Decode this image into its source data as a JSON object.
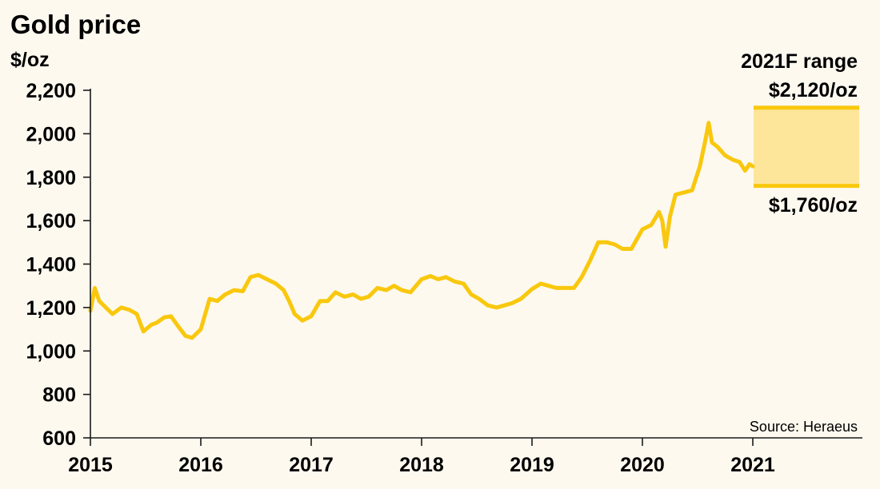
{
  "chart_data": {
    "type": "line",
    "title": "Gold price",
    "ylabel": "$/oz",
    "ylim": [
      600,
      2200
    ],
    "yticks": [
      600,
      800,
      1000,
      1200,
      1400,
      1600,
      1800,
      2000,
      2200
    ],
    "ytick_labels": [
      "600",
      "800",
      "1,000",
      "1,200",
      "1,400",
      "1,600",
      "1,800",
      "2,000",
      "2,200"
    ],
    "xlim": [
      2015,
      2022
    ],
    "xticks": [
      2015,
      2016,
      2017,
      2018,
      2019,
      2020,
      2021
    ],
    "xtick_labels": [
      "2015",
      "2016",
      "2017",
      "2018",
      "2019",
      "2020",
      "2021"
    ],
    "grid": false,
    "line_color": "#f9c80e",
    "series": [
      {
        "name": "",
        "x": [
          2015.0,
          2015.04,
          2015.08,
          2015.13,
          2015.2,
          2015.28,
          2015.35,
          2015.42,
          2015.48,
          2015.55,
          2015.6,
          2015.67,
          2015.73,
          2015.8,
          2015.86,
          2015.92,
          2016.0,
          2016.08,
          2016.15,
          2016.22,
          2016.3,
          2016.38,
          2016.45,
          2016.52,
          2016.6,
          2016.68,
          2016.75,
          2016.8,
          2016.85,
          2016.92,
          2017.0,
          2017.08,
          2017.15,
          2017.22,
          2017.3,
          2017.38,
          2017.45,
          2017.52,
          2017.6,
          2017.68,
          2017.75,
          2017.82,
          2017.9,
          2018.0,
          2018.08,
          2018.15,
          2018.22,
          2018.3,
          2018.38,
          2018.45,
          2018.52,
          2018.6,
          2018.68,
          2018.75,
          2018.82,
          2018.9,
          2019.0,
          2019.08,
          2019.15,
          2019.22,
          2019.3,
          2019.38,
          2019.45,
          2019.52,
          2019.6,
          2019.68,
          2019.75,
          2019.82,
          2019.9,
          2020.0,
          2020.08,
          2020.15,
          2020.18,
          2020.21,
          2020.25,
          2020.3,
          2020.38,
          2020.45,
          2020.52,
          2020.57,
          2020.6,
          2020.63,
          2020.68,
          2020.75,
          2020.82,
          2020.88,
          2020.93,
          2020.97,
          2021.0
        ],
        "values": [
          1185,
          1290,
          1230,
          1205,
          1170,
          1200,
          1190,
          1170,
          1090,
          1120,
          1130,
          1155,
          1160,
          1110,
          1070,
          1060,
          1100,
          1240,
          1230,
          1260,
          1280,
          1275,
          1340,
          1350,
          1330,
          1310,
          1280,
          1230,
          1170,
          1140,
          1160,
          1230,
          1230,
          1270,
          1250,
          1260,
          1240,
          1250,
          1290,
          1280,
          1300,
          1280,
          1270,
          1330,
          1345,
          1330,
          1340,
          1320,
          1310,
          1260,
          1240,
          1210,
          1200,
          1210,
          1220,
          1240,
          1285,
          1310,
          1300,
          1290,
          1290,
          1290,
          1340,
          1410,
          1500,
          1500,
          1490,
          1470,
          1470,
          1560,
          1580,
          1640,
          1600,
          1480,
          1620,
          1720,
          1730,
          1740,
          1850,
          1970,
          2050,
          1960,
          1940,
          1900,
          1880,
          1870,
          1830,
          1860,
          1850
        ]
      }
    ],
    "annotations": {
      "range_title": "2021F range",
      "high_label": "$2,120/oz",
      "low_label": "$1,760/oz",
      "high": 2120,
      "low": 1760,
      "source": "Source: Heraeus",
      "band_fill": "#fde59a",
      "band_line": "#f9c80e"
    }
  }
}
